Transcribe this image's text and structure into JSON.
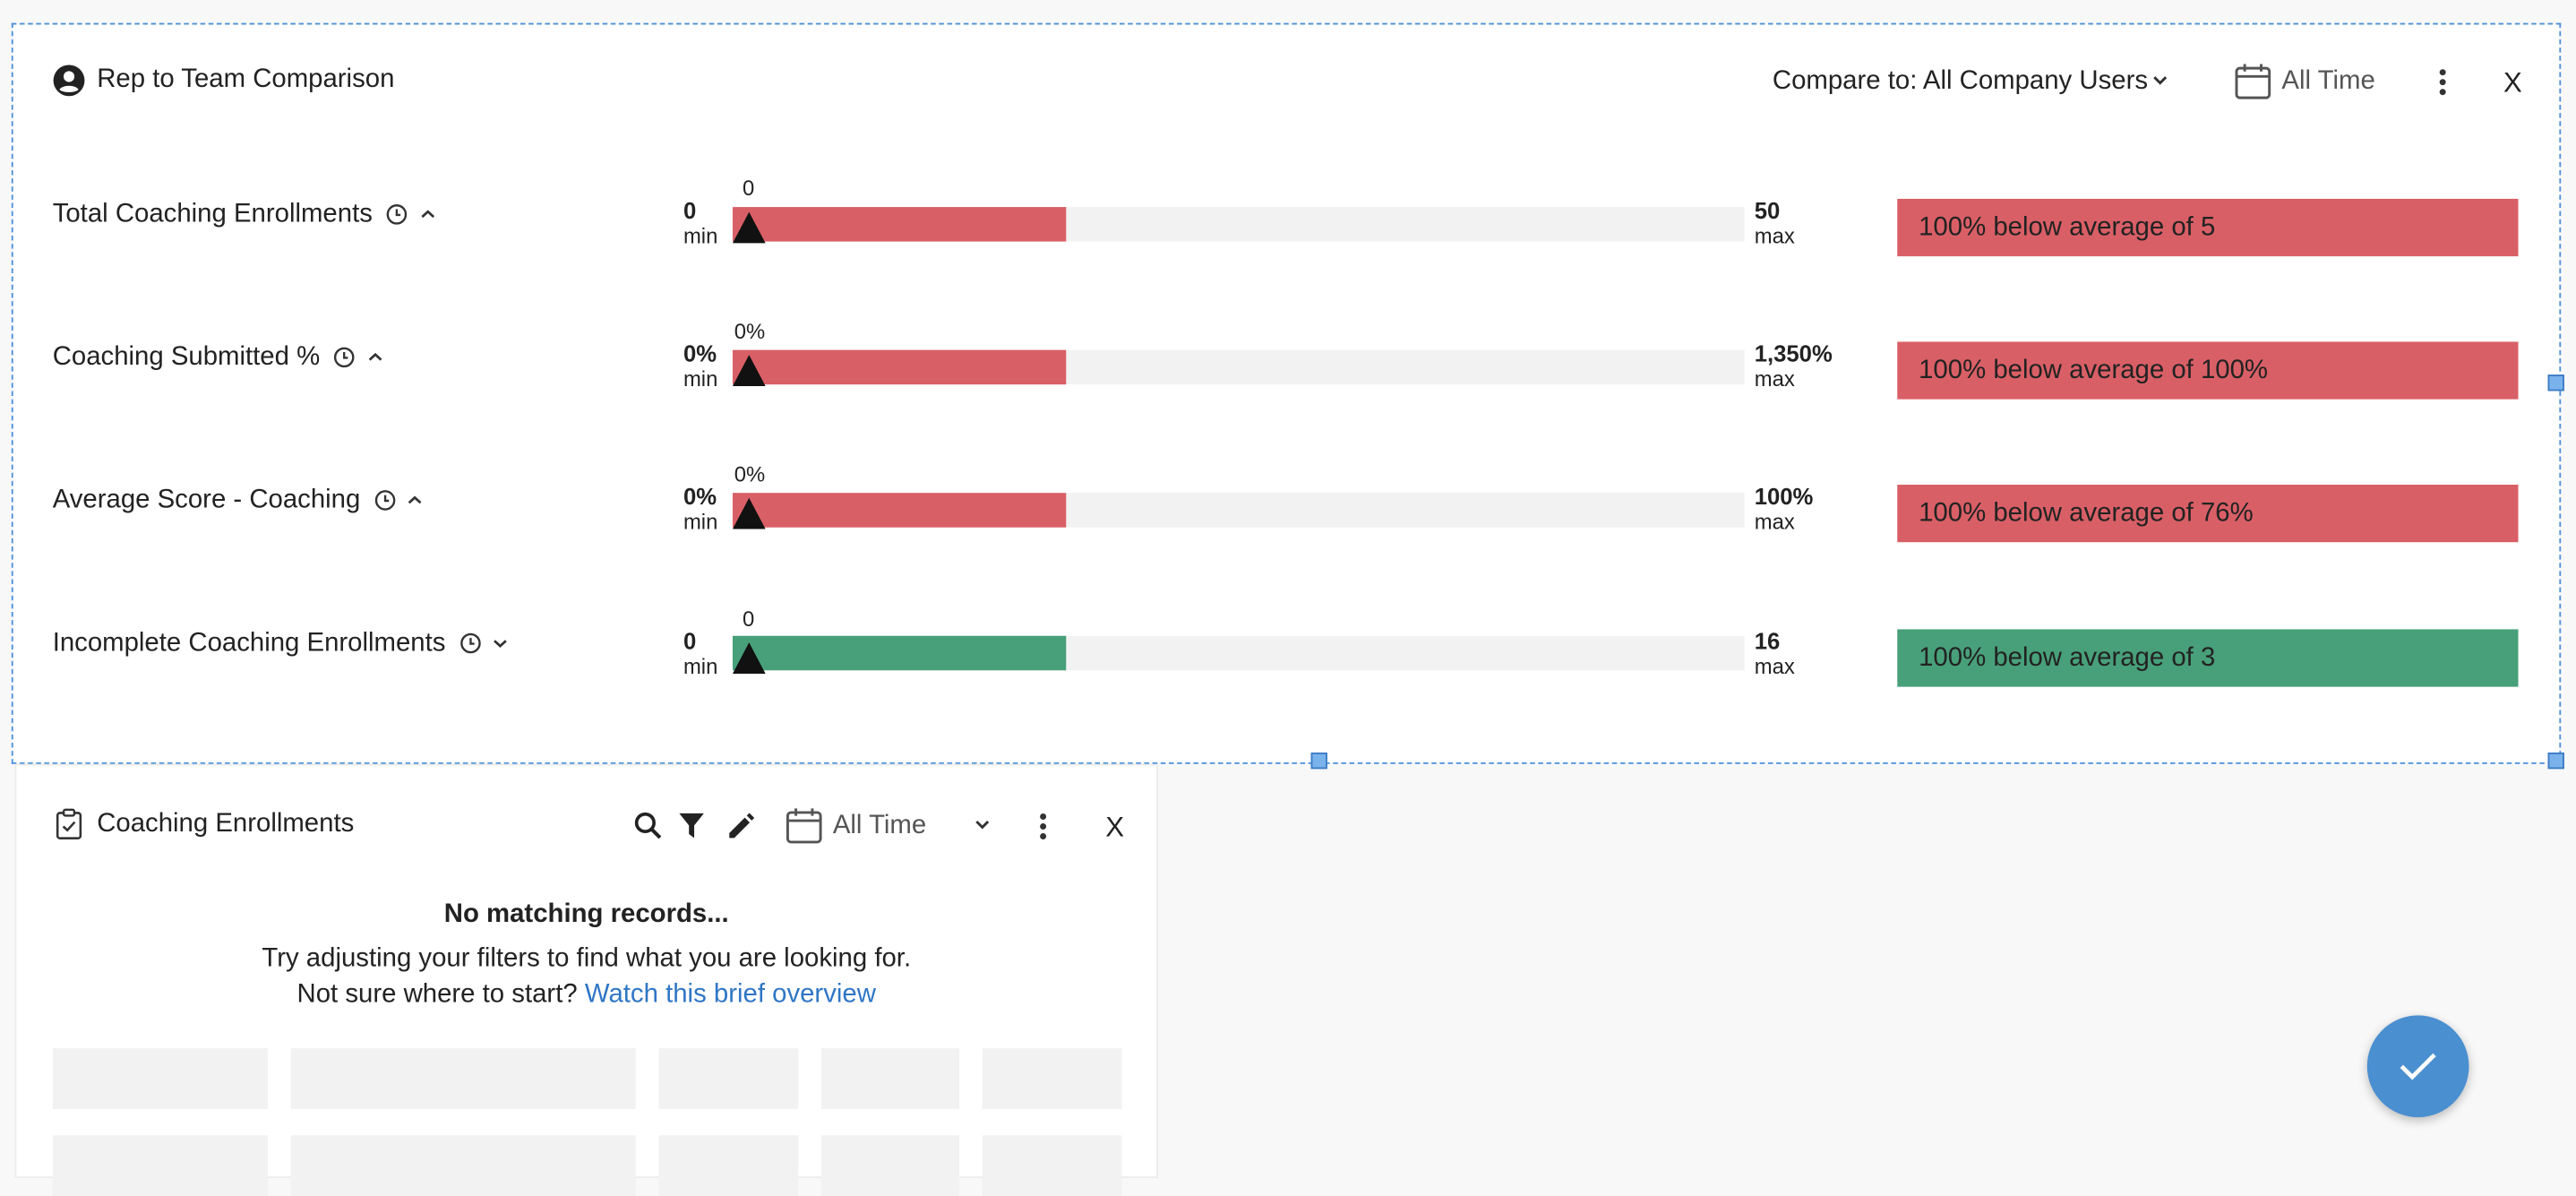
{
  "widget": {
    "title": "Rep to Team Comparison",
    "compare_label": "Compare to: All Company Users",
    "date_range": "All Time",
    "close_label": "X",
    "colors": {
      "below_bad": "#d95f66",
      "below_good": "#48a07a",
      "track": "#f2f2f2"
    },
    "rows": [
      {
        "label": "Total Coaching Enrollments",
        "sort_icon": "chevron-up-icon",
        "min_value": "0",
        "min_label": "min",
        "max_value": "50",
        "max_label": "max",
        "marker_value": "0",
        "fill_fraction": 0.33,
        "badge": "100% below average of 5",
        "badge_color": "#d95f66"
      },
      {
        "label": "Coaching Submitted %",
        "sort_icon": "chevron-up-icon",
        "min_value": "0%",
        "min_label": "min",
        "max_value": "1,350%",
        "max_label": "max",
        "marker_value": "0%",
        "fill_fraction": 0.33,
        "badge": "100% below average of 100%",
        "badge_color": "#d95f66"
      },
      {
        "label": "Average Score - Coaching",
        "sort_icon": "chevron-up-icon",
        "min_value": "0%",
        "min_label": "min",
        "max_value": "100%",
        "max_label": "max",
        "marker_value": "0%",
        "fill_fraction": 0.33,
        "badge": "100% below average of 76%",
        "badge_color": "#d95f66"
      },
      {
        "label": "Incomplete Coaching Enrollments",
        "sort_icon": "chevron-down-icon",
        "min_value": "0",
        "min_label": "min",
        "max_value": "16",
        "max_label": "max",
        "marker_value": "0",
        "fill_fraction": 0.33,
        "badge": "100% below average of 3",
        "badge_color": "#48a07a"
      }
    ]
  },
  "enrollments": {
    "title": "Coaching Enrollments",
    "date_range": "All Time",
    "close_label": "X",
    "empty_title": "No matching records...",
    "empty_line1": "Try adjusting your filters to find what you are looking for.",
    "empty_line2_prefix": "Not sure where to start?",
    "empty_link": "Watch this brief overview"
  },
  "fab_icon": "check-icon"
}
